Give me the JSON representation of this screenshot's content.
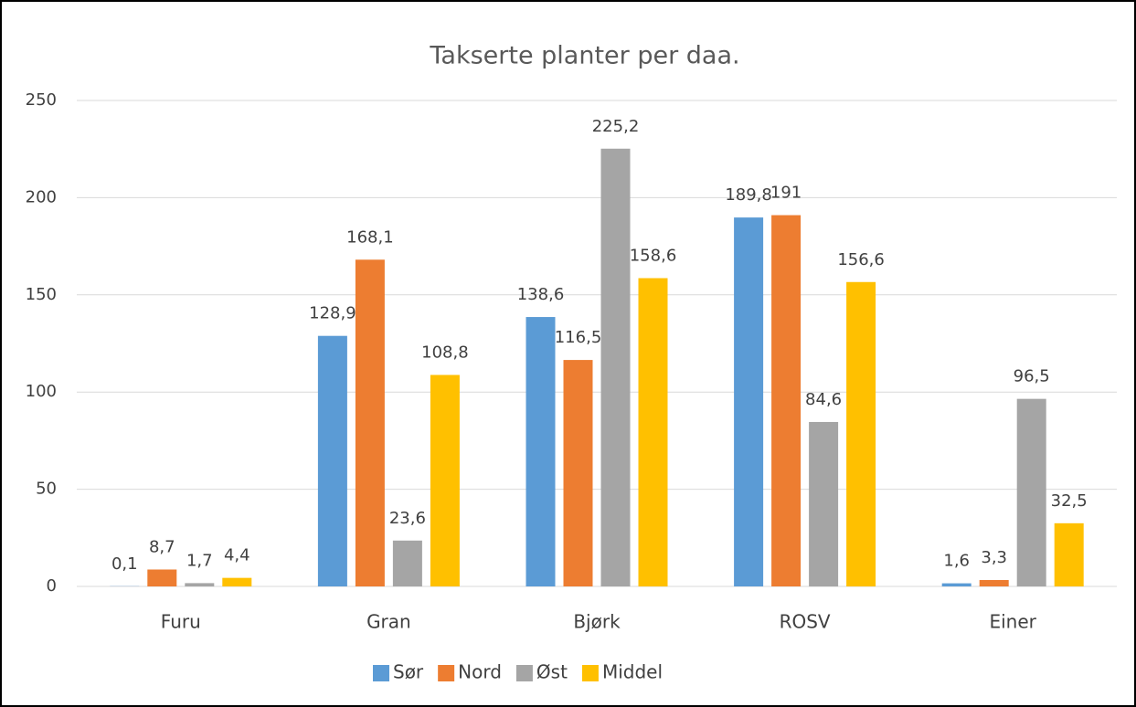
{
  "chart_data": {
    "type": "bar",
    "title": "Takserte planter per daa.",
    "categories": [
      "Furu",
      "Gran",
      "Bjørk",
      "ROSV",
      "Einer"
    ],
    "series": [
      {
        "name": "Sør",
        "color": "#5b9bd5",
        "values": [
          0.1,
          128.9,
          138.6,
          189.8,
          1.6
        ],
        "value_labels": [
          "0,1",
          "128,9",
          "138,6",
          "189,8",
          "1,6"
        ]
      },
      {
        "name": "Nord",
        "color": "#ed7d31",
        "values": [
          8.7,
          168.1,
          116.5,
          191,
          3.3
        ],
        "value_labels": [
          "8,7",
          "168,1",
          "116,5",
          "191",
          "3,3"
        ]
      },
      {
        "name": "Øst",
        "color": "#a5a5a5",
        "values": [
          1.7,
          23.6,
          225.2,
          84.6,
          96.5
        ],
        "value_labels": [
          "1,7",
          "23,6",
          "225,2",
          "84,6",
          "96,5"
        ]
      },
      {
        "name": "Middel",
        "color": "#ffc000",
        "values": [
          4.4,
          108.8,
          158.6,
          156.6,
          32.5
        ],
        "value_labels": [
          "4,4",
          "108,8",
          "158,6",
          "156,6",
          "32,5"
        ]
      }
    ],
    "ylim": [
      0,
      250
    ],
    "yticks": [
      0,
      50,
      100,
      150,
      200,
      250
    ],
    "grid": true,
    "legend": "bottom"
  }
}
